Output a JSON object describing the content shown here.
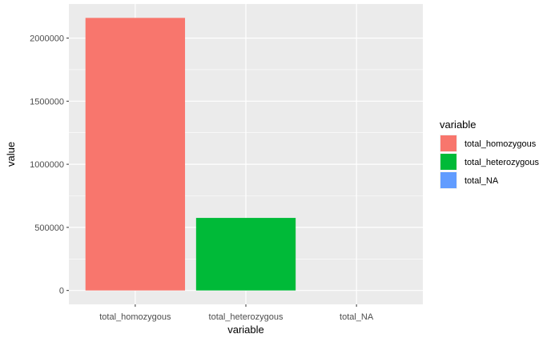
{
  "chart_data": {
    "type": "bar",
    "categories": [
      "total_homozygous",
      "total_heterozygous",
      "total_NA"
    ],
    "values": [
      2160000,
      575000,
      0
    ],
    "colors": [
      "#F8766D",
      "#00BA38",
      "#619CFF"
    ],
    "xlabel": "variable",
    "ylabel": "value",
    "ylim": [
      -110000,
      2270000
    ],
    "yticks": [
      0,
      500000,
      1000000,
      1500000,
      2000000
    ],
    "ytick_labels": [
      "0",
      "500000",
      "1000000",
      "1500000",
      "2000000"
    ],
    "grid": true,
    "panel_background": "#EBEBEB",
    "legend": {
      "title": "variable",
      "position": "right",
      "entries": [
        "total_homozygous",
        "total_heterozygous",
        "total_NA"
      ]
    }
  }
}
